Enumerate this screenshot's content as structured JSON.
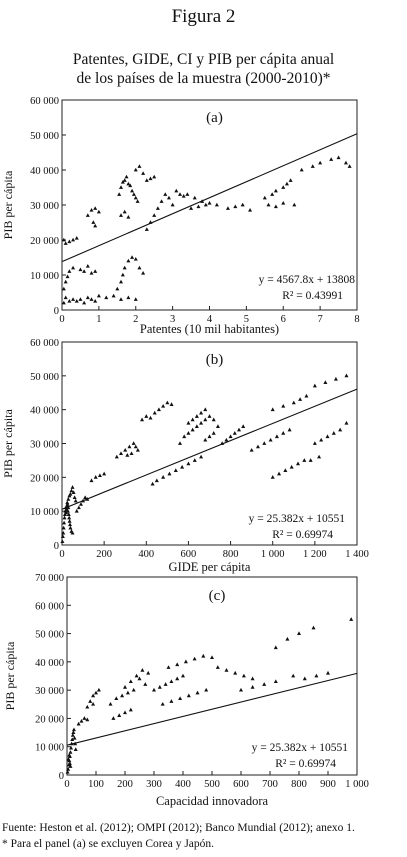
{
  "figure_label": "Figura 2",
  "title": {
    "line1": "Patentes, GIDE, CI y PIB per cápita anual",
    "line2": "de los países de la muestra (2000-2010)*"
  },
  "footer": {
    "source": "Fuente: Heston et al. (2012); OMPI (2012); Banco Mundial (2012); anexo 1.",
    "note": "* Para el panel (a) se excluyen Corea y Japón."
  },
  "chart_data": [
    {
      "type": "scatter",
      "panel": "(a)",
      "xlabel": "Patentes (10 mil habitantes)",
      "ylabel": "PIB per cápita",
      "xlim": [
        0,
        8
      ],
      "ylim": [
        0,
        60000
      ],
      "xticks": [
        0,
        1,
        2,
        3,
        4,
        5,
        6,
        7,
        8
      ],
      "yticks": [
        0,
        10000,
        20000,
        30000,
        40000,
        50000,
        60000
      ],
      "xtick_labels": [
        "0",
        "1",
        "2",
        "3",
        "4",
        "5",
        "6",
        "7",
        "8"
      ],
      "ytick_labels": [
        "0",
        "10 000",
        "20 000",
        "30 000",
        "40 000",
        "50 000",
        "60 000"
      ],
      "trendline": {
        "slope": 4567.8,
        "intercept": 13808
      },
      "equation": "y = 4567.8x + 13808",
      "r2": "R² = 0.43991",
      "points": [
        [
          0.05,
          2000
        ],
        [
          0.1,
          3500
        ],
        [
          0.2,
          2500
        ],
        [
          0.3,
          3000
        ],
        [
          0.4,
          2500
        ],
        [
          0.5,
          3000
        ],
        [
          0.6,
          2000
        ],
        [
          0.7,
          3500
        ],
        [
          0.8,
          3000
        ],
        [
          0.9,
          2500
        ],
        [
          1.0,
          4000
        ],
        [
          1.2,
          3500
        ],
        [
          1.4,
          4000
        ],
        [
          1.6,
          3000
        ],
        [
          1.8,
          3500
        ],
        [
          2.0,
          3000
        ],
        [
          0.05,
          6000
        ],
        [
          0.1,
          8000
        ],
        [
          0.15,
          9500
        ],
        [
          0.2,
          11000
        ],
        [
          0.3,
          12000
        ],
        [
          0.5,
          11500
        ],
        [
          0.6,
          11000
        ],
        [
          0.7,
          12500
        ],
        [
          0.8,
          10500
        ],
        [
          0.9,
          11000
        ],
        [
          0.05,
          20000
        ],
        [
          0.1,
          19000
        ],
        [
          0.2,
          19500
        ],
        [
          0.3,
          20000
        ],
        [
          0.4,
          20500
        ],
        [
          0.7,
          27000
        ],
        [
          0.8,
          28500
        ],
        [
          0.9,
          29000
        ],
        [
          1.0,
          28000
        ],
        [
          0.85,
          25000
        ],
        [
          0.9,
          24000
        ],
        [
          1.5,
          6000
        ],
        [
          1.6,
          8000
        ],
        [
          1.65,
          10000
        ],
        [
          1.7,
          12000
        ],
        [
          1.8,
          14000
        ],
        [
          1.9,
          15000
        ],
        [
          2.0,
          14500
        ],
        [
          2.1,
          12000
        ],
        [
          2.2,
          10500
        ],
        [
          1.55,
          33000
        ],
        [
          1.6,
          35000
        ],
        [
          1.65,
          36500
        ],
        [
          1.7,
          37000
        ],
        [
          1.75,
          38000
        ],
        [
          1.8,
          36000
        ],
        [
          1.85,
          35500
        ],
        [
          1.9,
          34000
        ],
        [
          1.95,
          33000
        ],
        [
          2.0,
          32000
        ],
        [
          2.05,
          31000
        ],
        [
          1.6,
          27000
        ],
        [
          1.7,
          28000
        ],
        [
          1.8,
          26500
        ],
        [
          2.3,
          23000
        ],
        [
          2.4,
          25000
        ],
        [
          2.5,
          27000
        ],
        [
          2.6,
          29000
        ],
        [
          2.7,
          31000
        ],
        [
          2.8,
          33000
        ],
        [
          2.9,
          32000
        ],
        [
          3.0,
          30000
        ],
        [
          2.0,
          40000
        ],
        [
          2.1,
          41000
        ],
        [
          2.2,
          39000
        ],
        [
          2.3,
          37000
        ],
        [
          2.4,
          37500
        ],
        [
          2.5,
          38000
        ],
        [
          3.1,
          34000
        ],
        [
          3.2,
          33000
        ],
        [
          3.3,
          32500
        ],
        [
          3.4,
          33000
        ],
        [
          3.6,
          32000
        ],
        [
          3.8,
          31000
        ],
        [
          4.0,
          30500
        ],
        [
          4.2,
          30000
        ],
        [
          3.5,
          29000
        ],
        [
          3.7,
          29500
        ],
        [
          3.9,
          30000
        ],
        [
          4.5,
          29000
        ],
        [
          4.7,
          29500
        ],
        [
          4.9,
          30000
        ],
        [
          5.1,
          28500
        ],
        [
          5.5,
          32000
        ],
        [
          5.7,
          33000
        ],
        [
          5.8,
          34000
        ],
        [
          6.0,
          35000
        ],
        [
          6.1,
          36000
        ],
        [
          6.2,
          37000
        ],
        [
          5.6,
          30000
        ],
        [
          5.8,
          29500
        ],
        [
          6.0,
          30500
        ],
        [
          6.3,
          30000
        ],
        [
          6.5,
          40000
        ],
        [
          6.8,
          41000
        ],
        [
          7.0,
          42000
        ],
        [
          7.3,
          43000
        ],
        [
          7.5,
          43500
        ],
        [
          7.7,
          42000
        ],
        [
          7.8,
          41000
        ]
      ]
    },
    {
      "type": "scatter",
      "panel": "(b)",
      "xlabel": "GIDE per cápita",
      "ylabel": "PIB per cápita",
      "xlim": [
        0,
        1400
      ],
      "ylim": [
        0,
        60000
      ],
      "xticks": [
        0,
        200,
        400,
        600,
        800,
        1000,
        1200,
        1400
      ],
      "yticks": [
        0,
        10000,
        20000,
        30000,
        40000,
        50000,
        60000
      ],
      "xtick_labels": [
        "0",
        "200",
        "400",
        "600",
        "800",
        "1 000",
        "1 200",
        "1 400"
      ],
      "ytick_labels": [
        "0",
        "10 000",
        "20 000",
        "30 000",
        "40 000",
        "50 000",
        "60 000"
      ],
      "trendline": {
        "slope": 25.382,
        "intercept": 10551
      },
      "equation": "y = 25.382x + 10551",
      "r2": "R² = 0.69974",
      "points": [
        [
          2,
          1000
        ],
        [
          4,
          2500
        ],
        [
          6,
          3500
        ],
        [
          8,
          5000
        ],
        [
          10,
          6500
        ],
        [
          12,
          8000
        ],
        [
          14,
          9000
        ],
        [
          16,
          10000
        ],
        [
          18,
          11000
        ],
        [
          20,
          9500
        ],
        [
          22,
          10500
        ],
        [
          24,
          11500
        ],
        [
          26,
          12000
        ],
        [
          28,
          10000
        ],
        [
          30,
          11000
        ],
        [
          32,
          9000
        ],
        [
          34,
          8000
        ],
        [
          36,
          7000
        ],
        [
          38,
          6000
        ],
        [
          40,
          5000
        ],
        [
          45,
          4000
        ],
        [
          50,
          3500
        ],
        [
          25,
          12500
        ],
        [
          30,
          13500
        ],
        [
          35,
          14500
        ],
        [
          40,
          15000
        ],
        [
          45,
          16000
        ],
        [
          50,
          17000
        ],
        [
          55,
          15500
        ],
        [
          60,
          14000
        ],
        [
          65,
          13000
        ],
        [
          70,
          10000
        ],
        [
          80,
          11000
        ],
        [
          90,
          12000
        ],
        [
          100,
          13000
        ],
        [
          110,
          14000
        ],
        [
          120,
          13500
        ],
        [
          140,
          19000
        ],
        [
          160,
          20000
        ],
        [
          180,
          20500
        ],
        [
          200,
          21000
        ],
        [
          260,
          26000
        ],
        [
          280,
          27000
        ],
        [
          300,
          28000
        ],
        [
          320,
          29000
        ],
        [
          340,
          30000
        ],
        [
          350,
          29000
        ],
        [
          360,
          28000
        ],
        [
          330,
          27000
        ],
        [
          310,
          26500
        ],
        [
          380,
          37000
        ],
        [
          400,
          38000
        ],
        [
          420,
          37500
        ],
        [
          440,
          39000
        ],
        [
          460,
          40000
        ],
        [
          480,
          41000
        ],
        [
          500,
          42000
        ],
        [
          520,
          41500
        ],
        [
          430,
          18000
        ],
        [
          450,
          19000
        ],
        [
          480,
          20000
        ],
        [
          510,
          21000
        ],
        [
          540,
          22000
        ],
        [
          570,
          23000
        ],
        [
          600,
          24000
        ],
        [
          630,
          25000
        ],
        [
          660,
          26000
        ],
        [
          560,
          30000
        ],
        [
          580,
          32000
        ],
        [
          600,
          33000
        ],
        [
          620,
          34000
        ],
        [
          640,
          35000
        ],
        [
          660,
          36000
        ],
        [
          680,
          37000
        ],
        [
          700,
          38000
        ],
        [
          720,
          37000
        ],
        [
          740,
          35000
        ],
        [
          720,
          33000
        ],
        [
          700,
          32000
        ],
        [
          680,
          31000
        ],
        [
          600,
          36000
        ],
        [
          620,
          37000
        ],
        [
          640,
          38000
        ],
        [
          660,
          39000
        ],
        [
          680,
          40000
        ],
        [
          760,
          30000
        ],
        [
          780,
          31000
        ],
        [
          800,
          32000
        ],
        [
          820,
          33000
        ],
        [
          840,
          34000
        ],
        [
          860,
          35000
        ],
        [
          900,
          28000
        ],
        [
          930,
          29000
        ],
        [
          960,
          30000
        ],
        [
          990,
          31000
        ],
        [
          1020,
          32000
        ],
        [
          1050,
          33000
        ],
        [
          1080,
          34000
        ],
        [
          1000,
          20000
        ],
        [
          1030,
          21000
        ],
        [
          1060,
          22000
        ],
        [
          1090,
          23000
        ],
        [
          1120,
          24000
        ],
        [
          1150,
          25000
        ],
        [
          1000,
          40000
        ],
        [
          1050,
          41000
        ],
        [
          1100,
          42000
        ],
        [
          1130,
          43000
        ],
        [
          1160,
          44000
        ],
        [
          1200,
          47000
        ],
        [
          1250,
          48000
        ],
        [
          1300,
          49000
        ],
        [
          1350,
          50000
        ],
        [
          1200,
          30000
        ],
        [
          1230,
          31000
        ],
        [
          1260,
          32000
        ],
        [
          1290,
          33000
        ],
        [
          1320,
          34000
        ],
        [
          1350,
          36000
        ],
        [
          1180,
          25000
        ],
        [
          1220,
          26000
        ]
      ]
    },
    {
      "type": "scatter",
      "panel": "(c)",
      "xlabel": "Capacidad innovadora",
      "ylabel": "PIB per cápita",
      "xlim": [
        0,
        1000
      ],
      "ylim": [
        0,
        70000
      ],
      "xticks": [
        0,
        100,
        200,
        300,
        400,
        500,
        600,
        700,
        800,
        900,
        1000
      ],
      "yticks": [
        0,
        10000,
        20000,
        30000,
        40000,
        50000,
        60000,
        70000
      ],
      "xtick_labels": [
        "0",
        "100",
        "200",
        "300",
        "400",
        "500",
        "600",
        "700",
        "800",
        "900",
        "1 000"
      ],
      "ytick_labels": [
        "0",
        "10 000",
        "20 000",
        "30 000",
        "40 000",
        "50 000",
        "60 000",
        "70 000"
      ],
      "trendline": {
        "slope": 25.382,
        "intercept": 10551
      },
      "equation": "y = 25.382x + 10551",
      "r2": "R² = 0.69974",
      "points": [
        [
          2,
          1000
        ],
        [
          4,
          2000
        ],
        [
          6,
          3500
        ],
        [
          8,
          5000
        ],
        [
          10,
          6500
        ],
        [
          12,
          8000
        ],
        [
          14,
          9500
        ],
        [
          16,
          11000
        ],
        [
          18,
          12500
        ],
        [
          20,
          14000
        ],
        [
          22,
          15000
        ],
        [
          24,
          16000
        ],
        [
          26,
          13000
        ],
        [
          28,
          11000
        ],
        [
          30,
          9000
        ],
        [
          8,
          7000
        ],
        [
          10,
          4000
        ],
        [
          12,
          3000
        ],
        [
          5,
          5500
        ],
        [
          40,
          18000
        ],
        [
          50,
          19000
        ],
        [
          60,
          20000
        ],
        [
          70,
          19500
        ],
        [
          70,
          24000
        ],
        [
          80,
          26000
        ],
        [
          90,
          28000
        ],
        [
          100,
          29000
        ],
        [
          110,
          30000
        ],
        [
          90,
          25000
        ],
        [
          150,
          25000
        ],
        [
          170,
          27000
        ],
        [
          190,
          28000
        ],
        [
          210,
          29000
        ],
        [
          230,
          30000
        ],
        [
          200,
          31000
        ],
        [
          220,
          33000
        ],
        [
          240,
          35000
        ],
        [
          260,
          37000
        ],
        [
          280,
          36000
        ],
        [
          250,
          34000
        ],
        [
          270,
          32000
        ],
        [
          160,
          20000
        ],
        [
          180,
          21000
        ],
        [
          200,
          22000
        ],
        [
          220,
          23000
        ],
        [
          300,
          30000
        ],
        [
          320,
          31000
        ],
        [
          340,
          32000
        ],
        [
          360,
          33000
        ],
        [
          380,
          34000
        ],
        [
          400,
          35000
        ],
        [
          350,
          38000
        ],
        [
          380,
          39000
        ],
        [
          410,
          40000
        ],
        [
          440,
          41000
        ],
        [
          470,
          42000
        ],
        [
          500,
          41500
        ],
        [
          330,
          25000
        ],
        [
          360,
          26000
        ],
        [
          390,
          27000
        ],
        [
          420,
          28000
        ],
        [
          450,
          29000
        ],
        [
          480,
          30000
        ],
        [
          520,
          38000
        ],
        [
          550,
          37000
        ],
        [
          580,
          36000
        ],
        [
          610,
          35000
        ],
        [
          640,
          34000
        ],
        [
          600,
          30000
        ],
        [
          640,
          31000
        ],
        [
          680,
          32000
        ],
        [
          720,
          33000
        ],
        [
          720,
          45000
        ],
        [
          760,
          48000
        ],
        [
          800,
          50000
        ],
        [
          850,
          52000
        ],
        [
          980,
          55000
        ],
        [
          780,
          35000
        ],
        [
          820,
          34000
        ],
        [
          860,
          35000
        ],
        [
          900,
          36000
        ]
      ]
    }
  ]
}
